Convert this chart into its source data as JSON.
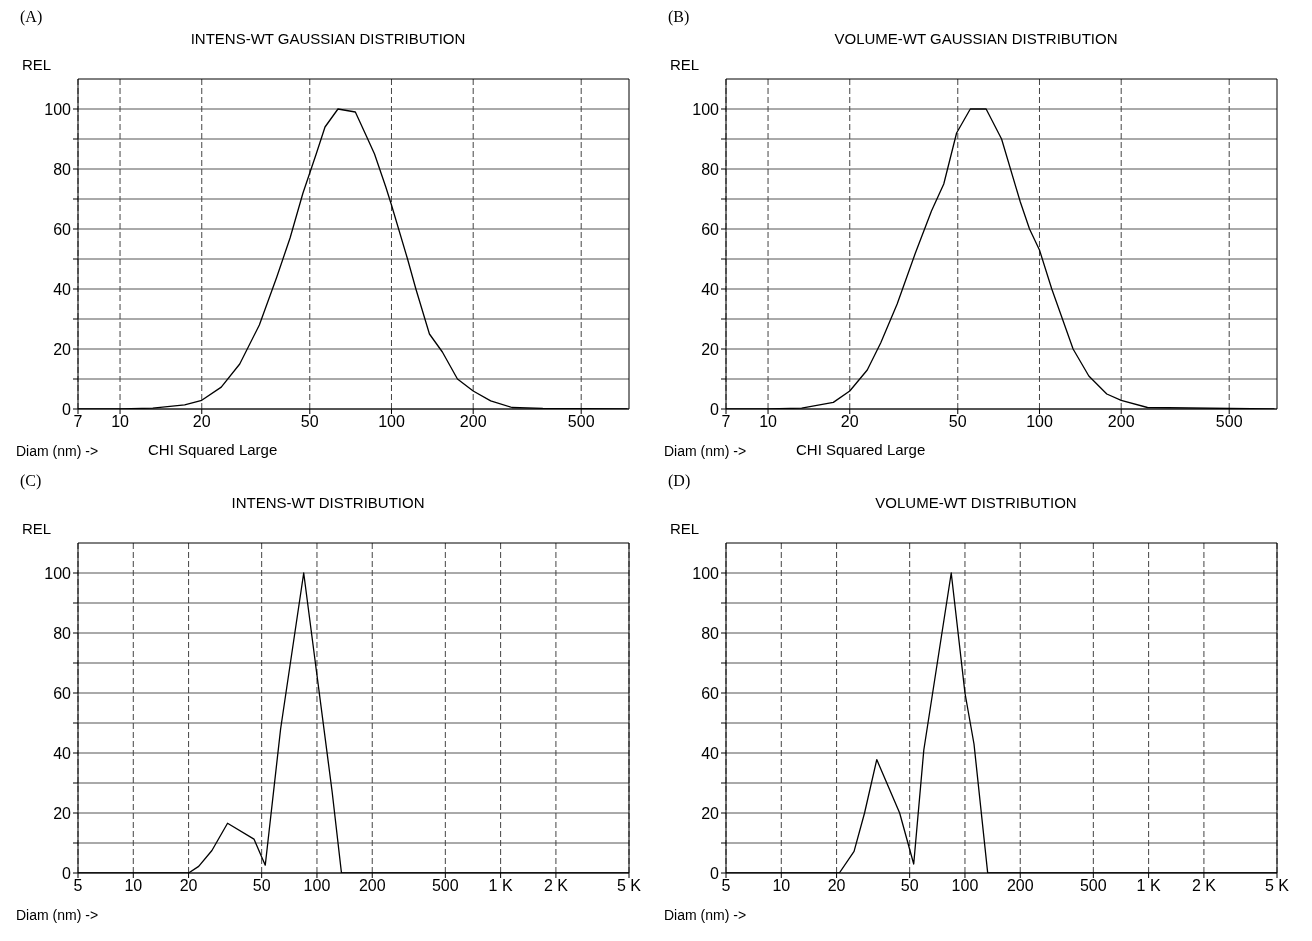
{
  "chart_data": [
    {
      "type": "line",
      "title": "INTENS-WT GAUSSIAN DISTRIBUTION",
      "xlabel": "Diam (nm) ->",
      "ylabel": "REL",
      "annotations": [
        "(A)",
        "CHI Squared Large"
      ],
      "log": "x",
      "grid": true,
      "x": [
        7,
        10,
        13.2,
        17.3,
        20,
        23.6,
        27.6,
        32.6,
        37.8,
        42.3,
        47.2,
        52.8,
        56.9,
        63.5,
        73.6,
        80.8,
        86.6,
        95.3,
        100,
        114.6,
        123,
        138,
        154,
        175,
        200,
        232,
        278,
        361,
        741
      ],
      "series": [
        {
          "color": "#000000",
          "values": [
            0,
            0,
            0.3,
            1.4,
            2.9,
            7.3,
            15,
            28,
            44,
            57,
            72,
            85,
            94,
            100,
            99,
            91,
            85,
            74,
            68,
            50,
            40,
            25,
            19,
            10,
            6,
            2.7,
            0.5,
            0.2,
            0
          ]
        }
      ],
      "xlim": [
        7,
        750
      ],
      "xticks": [
        7,
        10,
        20,
        50,
        100,
        200,
        500
      ],
      "ylim": [
        0,
        110
      ],
      "yticks": [
        0,
        {
          "value": 10,
          "label": null
        },
        20,
        {
          "value": 30,
          "label": null
        },
        40,
        {
          "value": 50,
          "label": null
        },
        60,
        {
          "value": 70,
          "label": null
        },
        80,
        {
          "value": 90,
          "label": null
        },
        100
      ]
    },
    {
      "type": "line",
      "title": "VOLUME-WT GAUSSIAN DISTRIBUTION",
      "xlabel": "Diam (nm) ->",
      "ylabel": "REL",
      "annotations": [
        "(B)",
        "CHI Squared Large"
      ],
      "log": "x",
      "grid": true,
      "x": [
        7,
        10,
        13.3,
        17.4,
        20,
        23.2,
        26,
        29.9,
        34.9,
        40,
        44.4,
        49.5,
        55.6,
        63.6,
        72.5,
        85,
        91.9,
        100,
        111,
        133,
        152,
        177,
        200,
        250,
        734
      ],
      "series": [
        {
          "color": "#000000",
          "values": [
            0,
            0,
            0.3,
            2.2,
            6,
            13,
            22,
            35,
            52,
            66,
            75,
            92,
            100,
            100,
            90,
            69,
            60,
            53,
            40,
            20,
            11,
            5,
            2.9,
            0.5,
            0
          ]
        }
      ],
      "xlim": [
        7,
        750
      ],
      "xticks": [
        7,
        10,
        20,
        50,
        100,
        200,
        500
      ],
      "ylim": [
        0,
        110
      ],
      "yticks": [
        0,
        {
          "value": 10,
          "label": null
        },
        20,
        {
          "value": 30,
          "label": null
        },
        40,
        {
          "value": 50,
          "label": null
        },
        60,
        {
          "value": 70,
          "label": null
        },
        80,
        {
          "value": 90,
          "label": null
        },
        100
      ]
    },
    {
      "type": "line",
      "title": "INTENS-WT DISTRIBUTION",
      "xlabel": "Diam (nm) ->",
      "ylabel": "REL",
      "annotations": [
        "(C)"
      ],
      "log": "x",
      "grid": true,
      "x": [
        5,
        20,
        22.7,
        26.8,
        32.6,
        45.4,
        52.3,
        63.4,
        84.7,
        100,
        121,
        136,
        5000
      ],
      "series": [
        {
          "color": "#000000",
          "values": [
            0,
            0,
            2.2,
            7.5,
            16.6,
            11.3,
            2.6,
            48,
            100,
            66,
            27,
            0,
            0
          ]
        }
      ],
      "xlim": [
        5,
        5000
      ],
      "xticks": [
        5,
        10,
        20,
        50,
        100,
        200,
        500,
        {
          "value": 1000,
          "label": "1 K"
        },
        {
          "value": 2000,
          "label": "2 K"
        },
        {
          "value": 5000,
          "label": "5 K"
        }
      ],
      "ylim": [
        0,
        110
      ],
      "yticks": [
        0,
        {
          "value": 10,
          "label": null
        },
        20,
        {
          "value": 30,
          "label": null
        },
        40,
        {
          "value": 50,
          "label": null
        },
        60,
        {
          "value": 70,
          "label": null
        },
        80,
        {
          "value": 90,
          "label": null
        },
        100
      ]
    },
    {
      "type": "line",
      "title": "VOLUME-WT DISTRIBUTION",
      "xlabel": "Diam (nm) ->",
      "ylabel": "REL",
      "annotations": [
        "(D)"
      ],
      "log": "x",
      "grid": true,
      "x": [
        5,
        20.7,
        24.9,
        28.4,
        33.1,
        44.1,
        52.6,
        59.7,
        84.2,
        100,
        112,
        133,
        5000
      ],
      "series": [
        {
          "color": "#000000",
          "values": [
            0,
            0,
            7.2,
            20,
            37.8,
            20,
            3,
            41,
            100,
            60,
            43,
            0,
            0
          ]
        }
      ],
      "xlim": [
        5,
        5000
      ],
      "xticks": [
        5,
        10,
        20,
        50,
        100,
        200,
        500,
        {
          "value": 1000,
          "label": "1 K"
        },
        {
          "value": 2000,
          "label": "2 K"
        },
        {
          "value": 5000,
          "label": "5 K"
        }
      ],
      "ylim": [
        0,
        110
      ],
      "yticks": [
        0,
        {
          "value": 10,
          "label": null
        },
        20,
        {
          "value": 30,
          "label": null
        },
        40,
        {
          "value": 50,
          "label": null
        },
        60,
        {
          "value": 70,
          "label": null
        },
        80,
        {
          "value": 90,
          "label": null
        },
        100
      ]
    }
  ]
}
